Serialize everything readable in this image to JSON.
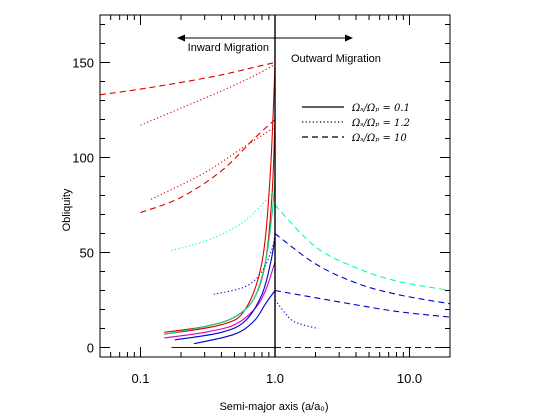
{
  "chart_data": {
    "type": "line",
    "title": "",
    "xlabel": "Semi-major axis (a/a₀)",
    "ylabel": "Obliquity",
    "xscale": "log",
    "xlim": [
      0.05,
      20
    ],
    "ylim": [
      -5,
      175
    ],
    "xticks": [
      {
        "value": 0.1,
        "label": "0.1"
      },
      {
        "value": 1.0,
        "label": "1.0"
      },
      {
        "value": 10.0,
        "label": "10.0"
      }
    ],
    "yticks": [
      {
        "value": 0,
        "label": "0"
      },
      {
        "value": 50,
        "label": "50"
      },
      {
        "value": 100,
        "label": "100"
      },
      {
        "value": 150,
        "label": "150"
      }
    ],
    "grid": false,
    "legend_position": "top-right",
    "legend": [
      {
        "label": "Ωₛ/Ωₚ = 0.1",
        "dash": "solid"
      },
      {
        "label": "Ωₛ/Ωₚ = 1.2",
        "dash": "dotted"
      },
      {
        "label": "Ωₛ/Ωₚ = 10",
        "dash": "dashed"
      }
    ],
    "annotations": {
      "vline_x": 1.0,
      "inward": "Inward Migration",
      "outward": "Outward Migration"
    },
    "series": [
      {
        "color": "#dd0000",
        "dash": "dashed",
        "points": [
          [
            0.05,
            133
          ],
          [
            0.1,
            136
          ],
          [
            0.2,
            139.5
          ],
          [
            0.4,
            143.5
          ],
          [
            0.7,
            147.5
          ],
          [
            1.0,
            150
          ]
        ]
      },
      {
        "color": "#dd0000",
        "dash": "dotted",
        "points": [
          [
            0.1,
            117
          ],
          [
            0.2,
            126
          ],
          [
            0.4,
            135
          ],
          [
            0.7,
            143
          ],
          [
            1.0,
            149
          ]
        ]
      },
      {
        "color": "#dd0000",
        "dash": "dashed",
        "points": [
          [
            0.1,
            71
          ],
          [
            0.2,
            79
          ],
          [
            0.4,
            93
          ],
          [
            0.7,
            110
          ],
          [
            1.0,
            120
          ]
        ]
      },
      {
        "color": "#dd0000",
        "dash": "dotted",
        "points": [
          [
            0.12,
            78
          ],
          [
            0.3,
            92
          ],
          [
            0.6,
            106
          ],
          [
            1.0,
            116
          ]
        ]
      },
      {
        "color": "#dd0000",
        "dash": "solid",
        "points": [
          [
            0.15,
            8
          ],
          [
            0.3,
            11
          ],
          [
            0.5,
            16
          ],
          [
            0.7,
            26
          ],
          [
            0.85,
            45
          ],
          [
            0.95,
            80
          ],
          [
            1.0,
            120
          ]
        ]
      },
      {
        "color": "#dd0000",
        "dash": "solid",
        "points": [
          [
            0.15,
            7
          ],
          [
            0.4,
            12
          ],
          [
            0.6,
            20
          ],
          [
            0.8,
            45
          ],
          [
            0.92,
            90
          ],
          [
            1.0,
            148
          ]
        ]
      },
      {
        "color": "#00dd88",
        "dash": "solid",
        "points": [
          [
            0.15,
            7
          ],
          [
            0.3,
            11
          ],
          [
            0.5,
            16
          ],
          [
            0.7,
            26
          ],
          [
            0.85,
            45
          ],
          [
            0.95,
            70
          ],
          [
            1.0,
            88
          ]
        ]
      },
      {
        "color": "#00ffaa",
        "dash": "dotted",
        "points": [
          [
            0.17,
            51
          ],
          [
            0.3,
            56
          ],
          [
            0.5,
            63
          ],
          [
            0.7,
            71
          ],
          [
            1.0,
            83
          ]
        ]
      },
      {
        "color": "#00ffaa",
        "dash": "dashed",
        "points": [
          [
            1.0,
            75
          ],
          [
            2.0,
            53
          ],
          [
            4.0,
            42
          ],
          [
            8.0,
            35
          ],
          [
            20.0,
            30
          ]
        ]
      },
      {
        "color": "#cc00cc",
        "dash": "solid",
        "points": [
          [
            0.15,
            5
          ],
          [
            0.3,
            8
          ],
          [
            0.5,
            12
          ],
          [
            0.7,
            20
          ],
          [
            0.85,
            30
          ],
          [
            1.0,
            45
          ]
        ]
      },
      {
        "color": "#0000cc",
        "dash": "solid",
        "points": [
          [
            0.18,
            4
          ],
          [
            0.4,
            8
          ],
          [
            0.6,
            14
          ],
          [
            0.8,
            28
          ],
          [
            0.93,
            45
          ],
          [
            1.0,
            58
          ]
        ]
      },
      {
        "color": "#0000cc",
        "dash": "solid",
        "points": [
          [
            0.25,
            2
          ],
          [
            0.5,
            7
          ],
          [
            0.7,
            14
          ],
          [
            0.85,
            23
          ],
          [
            1.0,
            30
          ]
        ]
      },
      {
        "color": "#0000cc",
        "dash": "solid",
        "points": [
          [
            0.17,
            0
          ],
          [
            1.0,
            0
          ]
        ]
      },
      {
        "color": "#0000cc",
        "dash": "dotted",
        "points": [
          [
            0.35,
            28
          ],
          [
            0.6,
            32
          ],
          [
            0.8,
            40
          ],
          [
            0.95,
            52
          ],
          [
            1.0,
            60
          ]
        ]
      },
      {
        "color": "#0000cc",
        "dash": "dotted",
        "points": [
          [
            1.0,
            25
          ],
          [
            1.3,
            15
          ],
          [
            1.6,
            12
          ],
          [
            2.1,
            10
          ]
        ]
      },
      {
        "color": "#0000cc",
        "dash": "dashed",
        "points": [
          [
            1.0,
            60
          ],
          [
            2.0,
            44
          ],
          [
            4.0,
            34
          ],
          [
            8.0,
            28
          ],
          [
            20.0,
            23
          ]
        ]
      },
      {
        "color": "#0000cc",
        "dash": "dashed",
        "points": [
          [
            1.0,
            30
          ],
          [
            3.0,
            24
          ],
          [
            8.0,
            19
          ],
          [
            20.0,
            16
          ]
        ]
      },
      {
        "color": "#0000cc",
        "dash": "dashed",
        "points": [
          [
            1.0,
            0
          ],
          [
            20.0,
            0
          ]
        ]
      }
    ]
  }
}
